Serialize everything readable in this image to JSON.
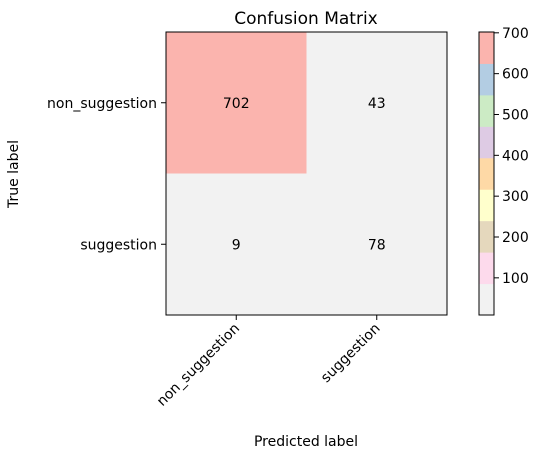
{
  "chart_data": {
    "type": "heatmap",
    "title": "Confusion Matrix",
    "xlabel": "Predicted label",
    "ylabel": "True label",
    "x_categories": [
      "non_suggestion",
      "suggestion"
    ],
    "y_categories": [
      "non_suggestion",
      "suggestion"
    ],
    "values": [
      [
        702,
        43
      ],
      [
        9,
        78
      ]
    ],
    "colormap": "Pastel1",
    "colorbar": {
      "ticks": [
        100,
        200,
        300,
        400,
        500,
        600,
        700
      ],
      "range": [
        9,
        702
      ],
      "colors": [
        "#f2f2f2",
        "#fddaec",
        "#e5d8bd",
        "#ffffcc",
        "#fed9a6",
        "#decbe4",
        "#ccebc5",
        "#b3cde3",
        "#fbb4ae"
      ]
    }
  }
}
